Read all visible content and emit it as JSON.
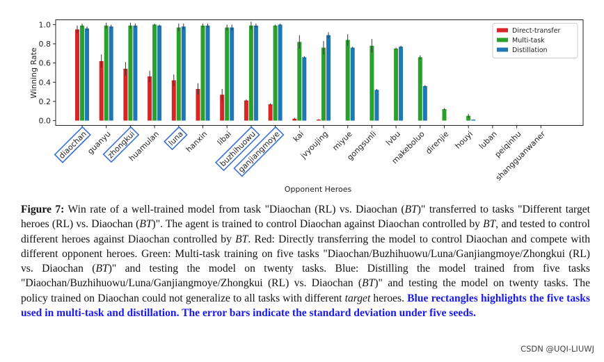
{
  "chart_data": {
    "type": "bar",
    "xlabel": "Opponent Heroes",
    "ylabel": "Winning Rate",
    "categories": [
      "diaochan",
      "guanyu",
      "zhongkui",
      "huamulan",
      "luna",
      "hanxin",
      "libai",
      "buzhihuowu",
      "ganjiangmoye",
      "kai",
      "jvyoujing",
      "miyue",
      "gongsunli",
      "lvbu",
      "makeboluo",
      "direnjie",
      "houyi",
      "luban",
      "peiqinhu",
      "shangguanwaner"
    ],
    "highlighted": [
      true,
      false,
      true,
      false,
      true,
      false,
      false,
      true,
      true,
      false,
      false,
      false,
      false,
      false,
      false,
      false,
      false,
      false,
      false,
      false
    ],
    "series": [
      {
        "name": "Direct-transfer",
        "color": "#d62728",
        "values": [
          0.95,
          0.62,
          0.54,
          0.46,
          0.42,
          0.33,
          0.27,
          0.21,
          0.17,
          0.02,
          0.01,
          0,
          0,
          0,
          0,
          0,
          0,
          0,
          0,
          0
        ],
        "errors": [
          0.04,
          0.07,
          0.07,
          0.06,
          0.06,
          0.06,
          0.06,
          0.01,
          0.01,
          0.01,
          0.005,
          0,
          0,
          0,
          0,
          0,
          0,
          0,
          0,
          0
        ]
      },
      {
        "name": "Multi-task",
        "color": "#2ca02c",
        "values": [
          0.99,
          0.99,
          0.99,
          1.0,
          0.97,
          0.99,
          0.97,
          0.99,
          0.99,
          0.82,
          0.76,
          0.84,
          0.78,
          0.75,
          0.66,
          0.12,
          0.05,
          0,
          0,
          0
        ],
        "errors": [
          0.02,
          0.03,
          0.03,
          0.01,
          0.04,
          0.02,
          0.03,
          0.04,
          0.01,
          0.07,
          0.07,
          0.06,
          0.07,
          0.01,
          0.02,
          0.01,
          0.02,
          0,
          0,
          0
        ]
      },
      {
        "name": "Distillation",
        "color": "#1f77b4",
        "values": [
          0.96,
          0.98,
          0.99,
          0.99,
          0.98,
          0.99,
          0.97,
          0.99,
          1.0,
          0.66,
          0.89,
          0.76,
          0.32,
          0.77,
          0.36,
          0,
          0.01,
          0,
          0,
          0
        ],
        "errors": [
          0.02,
          0.02,
          0.02,
          0.01,
          0.03,
          0.02,
          0.03,
          0.02,
          0.01,
          0.01,
          0.03,
          0.01,
          0.01,
          0.01,
          0.01,
          0,
          0,
          0,
          0,
          0
        ]
      }
    ],
    "ylim": [
      -0.05,
      1.05
    ],
    "yticks": [
      {
        "value": 0,
        "label": "0.0"
      },
      0.2,
      0.4,
      0.6,
      0.8,
      {
        "value": 1,
        "label": "1.0"
      }
    ],
    "legend": "upper right"
  },
  "caption": {
    "label": "Figure 7:",
    "parts": [
      {
        "text": " Win rate of a well-trained model from task \"Diaochan (RL) vs. Diaochan (",
        "style": "normal"
      },
      {
        "text": "BT",
        "style": "italic"
      },
      {
        "text": ")\" transferred to tasks \"Different target heroes (RL) vs. Diaochan (",
        "style": "normal"
      },
      {
        "text": "BT",
        "style": "italic"
      },
      {
        "text": ")\". The agent is trained to control Diaochan against Diaochan controlled by ",
        "style": "normal"
      },
      {
        "text": "BT",
        "style": "italic"
      },
      {
        "text": ", and tested to control different heroes against Diaochan controlled by ",
        "style": "normal"
      },
      {
        "text": "BT",
        "style": "italic"
      },
      {
        "text": ". Red: Directly transferring the model to control Diaochan and compete with different opponent heroes. Green: Multi-task training on five tasks \"Diaochan/Buzhihuowu/Luna/Ganjiangmoye/Zhongkui (RL) vs. Diaochan (",
        "style": "normal"
      },
      {
        "text": "BT",
        "style": "italic"
      },
      {
        "text": ")\" and testing the model on twenty tasks. Blue: Distilling the model trained from five tasks \"Diaochan/Buzhihuowu/Luna/Ganjiangmoye/Zhongkui (RL) vs. Diaochan (",
        "style": "normal"
      },
      {
        "text": "BT",
        "style": "italic"
      },
      {
        "text": ")\" and testing the model on twenty tasks. The policy trained on Diaochan could not generalize to all tasks with different ",
        "style": "normal"
      },
      {
        "text": "target",
        "style": "italic"
      },
      {
        "text": " heroes. ",
        "style": "normal"
      },
      {
        "text": "Blue rectangles highlights the five tasks used in multi-task and distillation. The error bars indicate the standard deviation under five seeds.",
        "style": "bold-blue"
      }
    ]
  },
  "watermark": "CSDN @UQI-LIUWJ"
}
